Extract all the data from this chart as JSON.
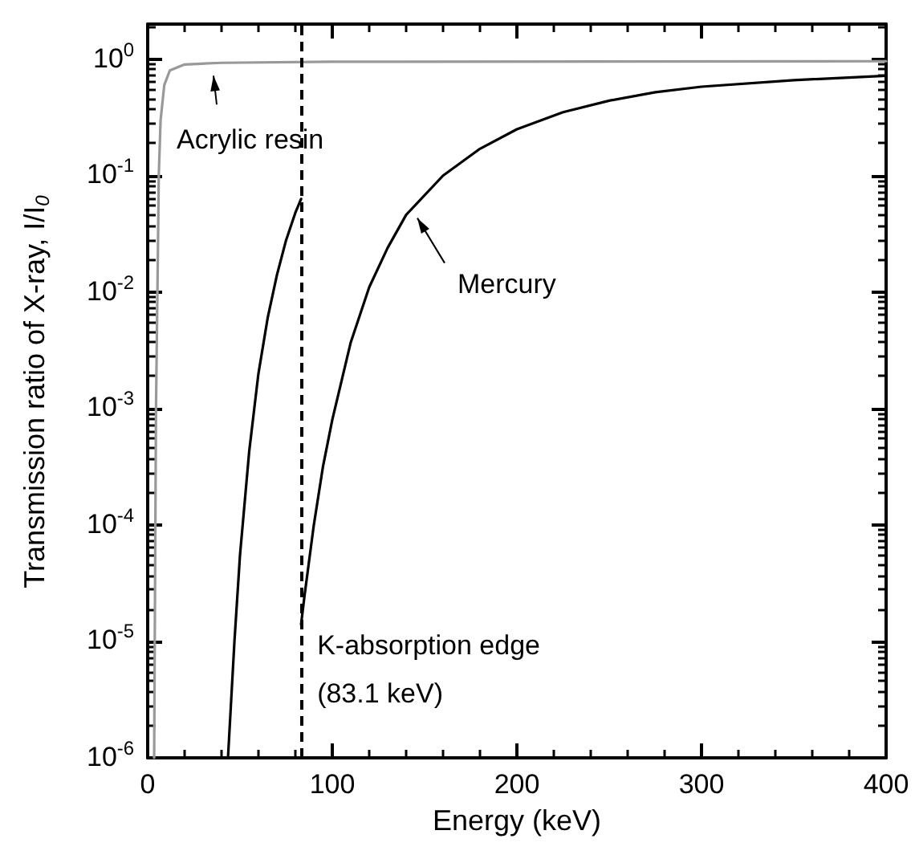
{
  "chart_data": {
    "type": "line",
    "xlabel": "Energy (keV)",
    "ylabel": "Transmission ratio of X-ray, I/I$_{0}$",
    "xlim": [
      0,
      400
    ],
    "xticks": [
      0,
      100,
      200,
      300,
      400
    ],
    "ylim": [
      1e-06,
      2
    ],
    "log": "y",
    "yticks": [
      {
        "value": 1e-06,
        "label": "10$^{-6}$"
      },
      {
        "value": 1e-05,
        "label": "10$^{-5}$"
      },
      {
        "value": 0.0001,
        "label": "10$^{-4}$"
      },
      {
        "value": 0.001,
        "label": "10$^{-3}$"
      },
      {
        "value": 0.01,
        "label": "10$^{-2}$"
      },
      {
        "value": 0.1,
        "label": "10$^{-1}$"
      },
      {
        "value": 1,
        "label": "10$^{0}$"
      }
    ],
    "grid": false,
    "marker": "none",
    "line_style": "solid",
    "series": [
      {
        "color": "#999999",
        "x": [
          3.5,
          4.5,
          5.5,
          6,
          7,
          9,
          12,
          20,
          40,
          100,
          400
        ],
        "values": [
          1e-06,
          0.001,
          0.02,
          0.1,
          0.3,
          0.6,
          0.8,
          0.9,
          0.93,
          0.95,
          0.96
        ]
      },
      {
        "color": "#000000",
        "x": [
          43.5,
          47,
          50,
          55,
          60,
          65,
          70,
          75,
          80,
          83.1
        ],
        "values": [
          1e-06,
          1e-05,
          5.5e-05,
          0.00043,
          0.002,
          0.006,
          0.014,
          0.028,
          0.048,
          0.063
        ]
      },
      {
        "color": "#000000",
        "x": [
          83.1,
          85,
          90,
          95,
          100,
          110,
          120,
          130,
          140,
          160,
          180,
          200,
          225,
          250,
          275,
          300,
          350,
          400
        ],
        "values": [
          1.4e-05,
          2.5e-05,
          0.0001,
          0.00032,
          0.0008,
          0.0037,
          0.011,
          0.024,
          0.046,
          0.1,
          0.17,
          0.25,
          0.35,
          0.44,
          0.52,
          0.58,
          0.66,
          0.72
        ]
      }
    ],
    "ref_lines": [
      {
        "axis": "x",
        "value": 83.1,
        "label": "K-absorption edge\n(83.1 keV)",
        "color": "#000000",
        "line_style": "dashed"
      }
    ],
    "annotations": [
      {
        "text": "Acrylic resin",
        "x": 40,
        "y": 0.93
      },
      {
        "text": "Mercury",
        "x": 140,
        "y": 0.046
      }
    ]
  }
}
